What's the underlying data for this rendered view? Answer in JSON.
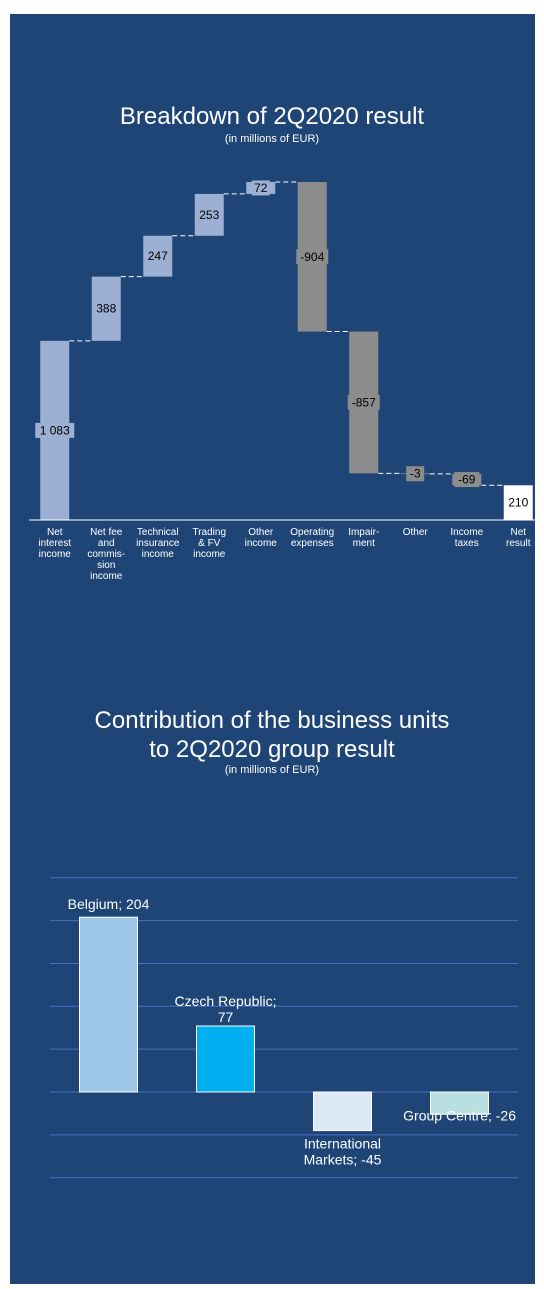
{
  "chart_data": [
    {
      "type": "waterfall",
      "title": "Breakdown of 2Q2020 result",
      "subtitle": "(in millions of EUR)",
      "categories": [
        [
          "Net",
          "interest",
          "income"
        ],
        [
          "Net fee",
          "and",
          "commis-",
          "sion",
          "income"
        ],
        [
          "Technical",
          "insurance",
          "income"
        ],
        [
          "Trading",
          "& FV",
          "income"
        ],
        [
          "Other",
          "income"
        ],
        [
          "Operating",
          "expenses"
        ],
        [
          "Impair-",
          "ment"
        ],
        [
          "Other"
        ],
        [
          "Income",
          "taxes"
        ],
        [
          "Net",
          "result"
        ]
      ],
      "values": [
        1083,
        388,
        247,
        253,
        72,
        -904,
        -857,
        -3,
        -69,
        210
      ],
      "value_labels": [
        "1 083",
        "388",
        "247",
        "253",
        "72",
        "-904",
        "-857",
        "-3",
        "-69",
        "210"
      ],
      "kinds": [
        "positive",
        "positive",
        "positive",
        "positive",
        "positive",
        "negative",
        "negative",
        "negative",
        "negative",
        "total"
      ],
      "colors": {
        "positive": "#9cb0d4",
        "negative": "#8c8c8c",
        "total": "#ffffff"
      }
    },
    {
      "type": "bar",
      "title": [
        "Contribution of the business units",
        "to 2Q2020 group result"
      ],
      "subtitle": "(in millions of EUR)",
      "categories": [
        "Belgium",
        "Czech Republic",
        "International Markets",
        "Group Centre"
      ],
      "values": [
        204,
        77,
        -45,
        -26
      ],
      "data_labels": [
        [
          "Belgium; 204"
        ],
        [
          "Czech Republic;",
          "77"
        ],
        [
          "International",
          "Markets; -45"
        ],
        [
          "Group Centre; -26"
        ]
      ],
      "colors": [
        "#9ec6e7",
        "#00b0f0",
        "#dce8f5",
        "#b9e0e0"
      ],
      "ylim": [
        -100,
        250
      ],
      "grid": true
    }
  ]
}
